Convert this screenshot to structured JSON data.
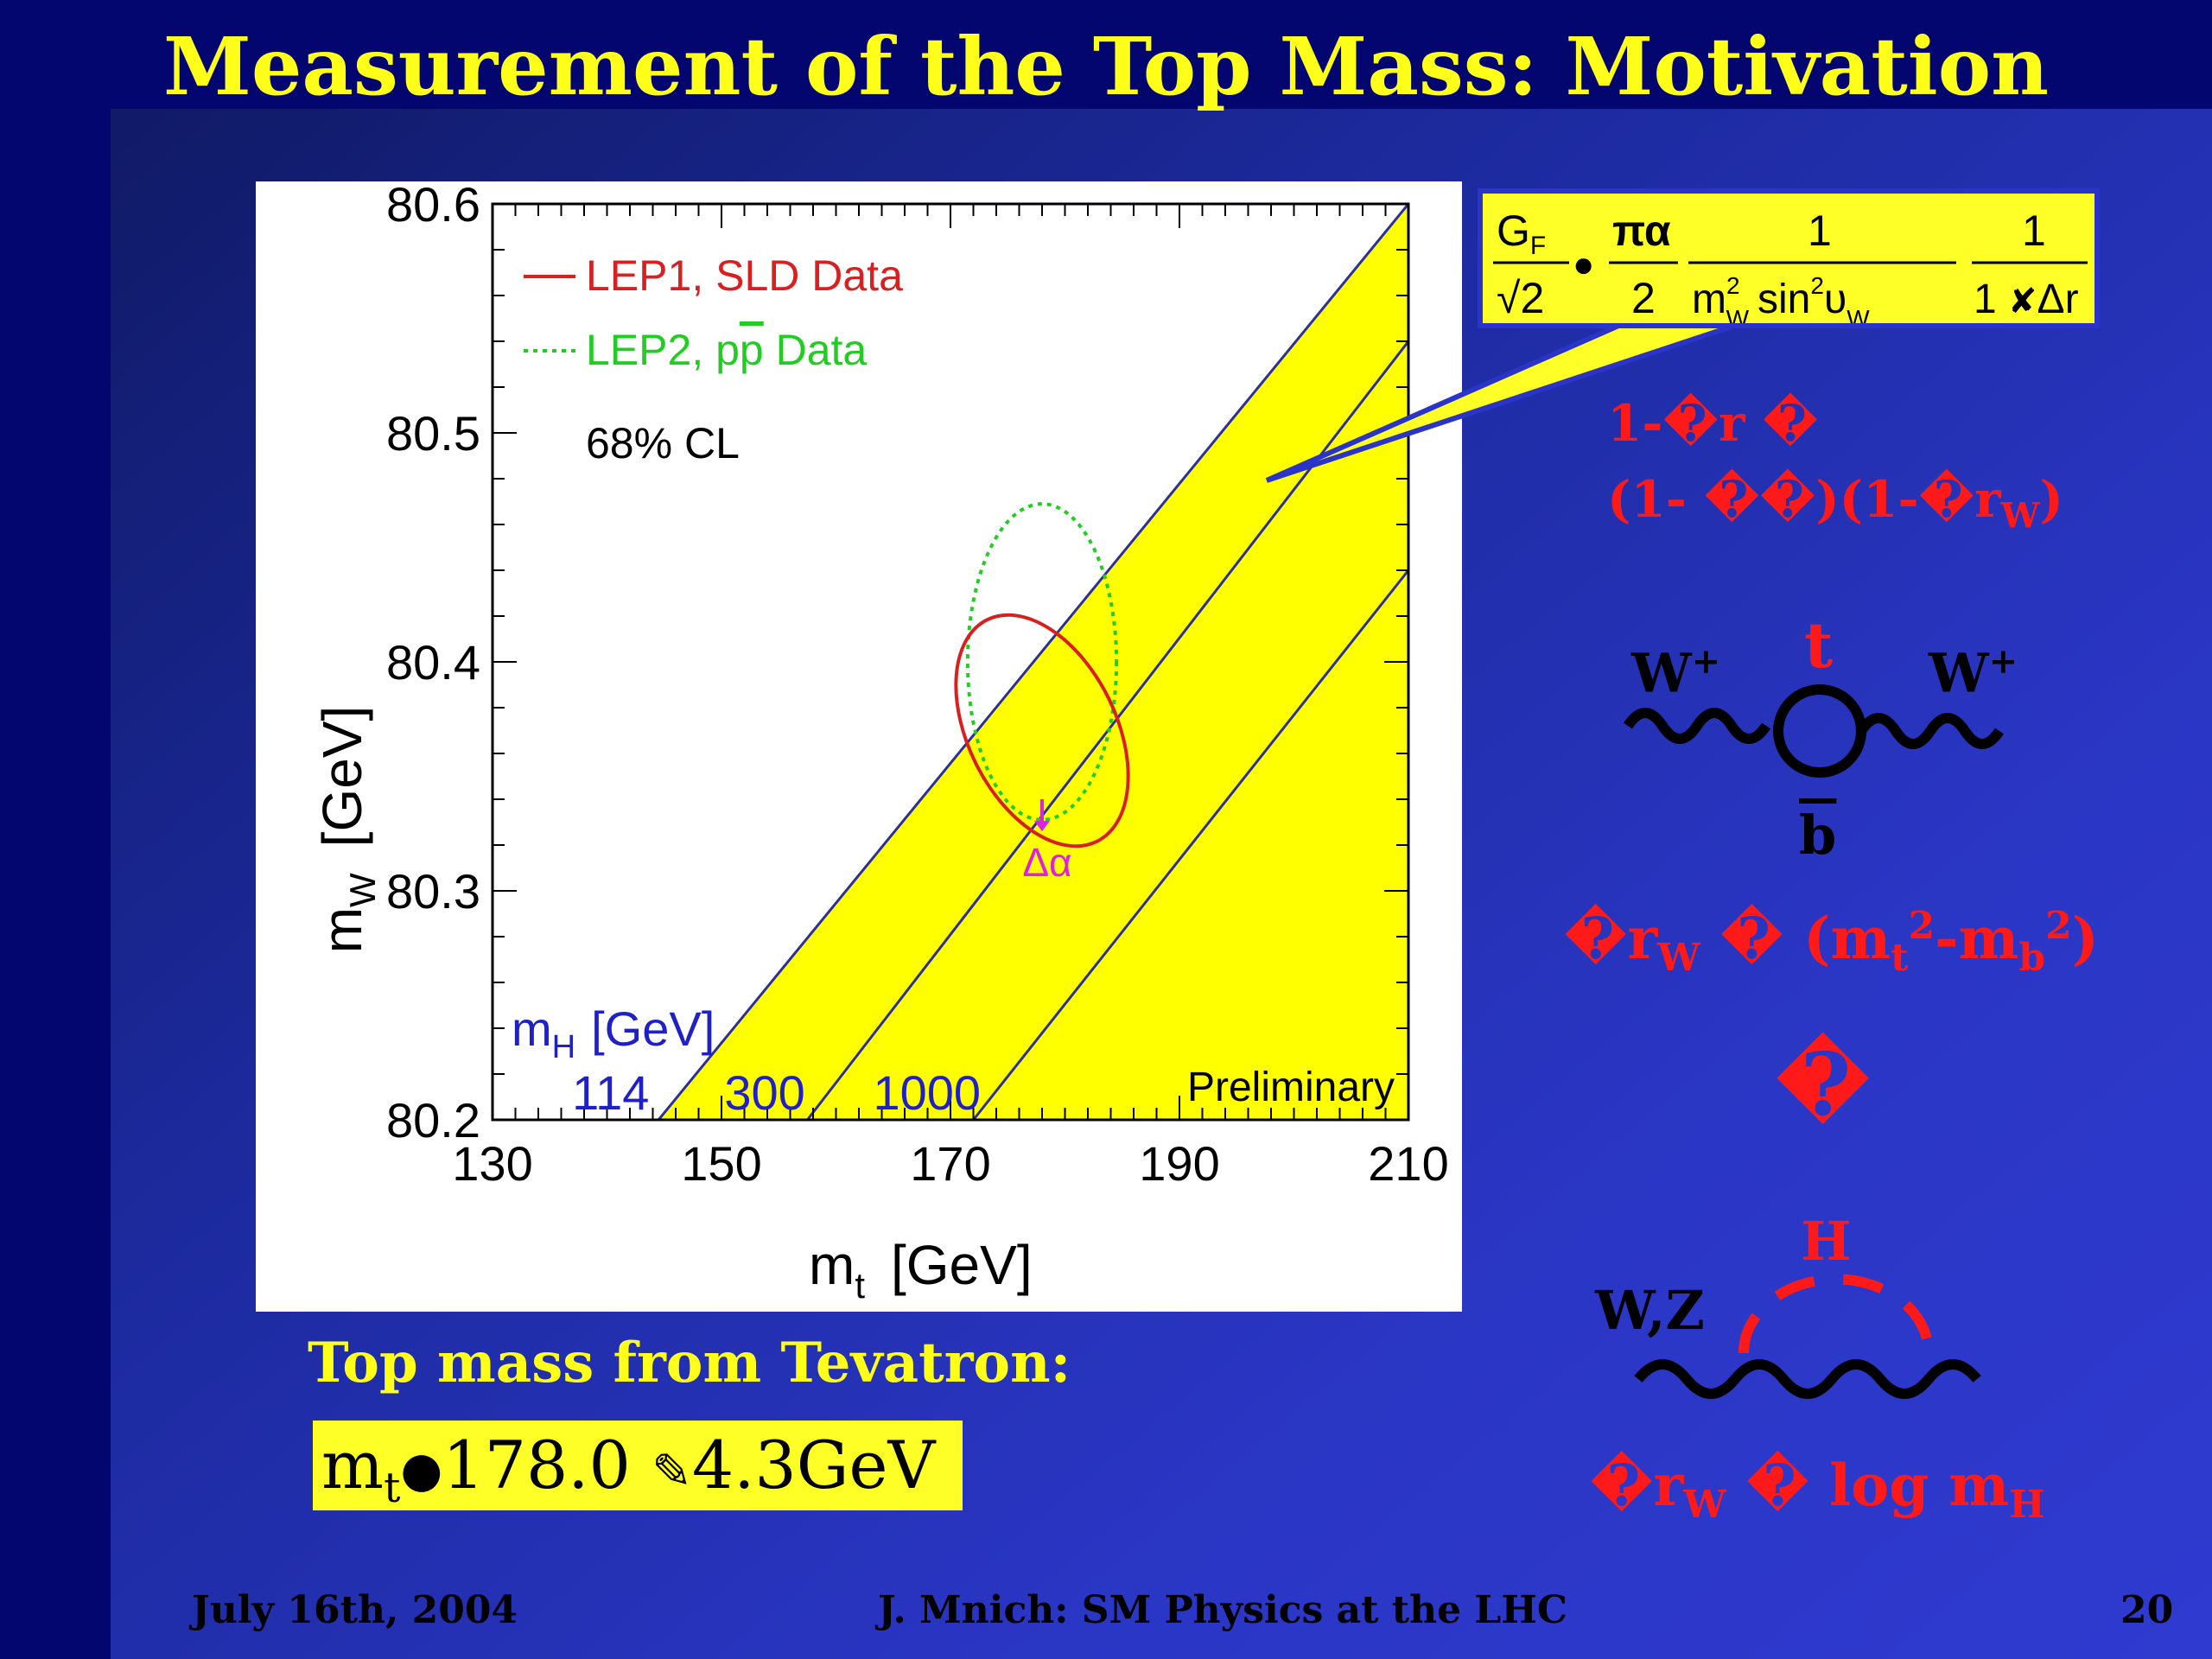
{
  "slide": {
    "title": "Measurement of the Top Mass: Motivation",
    "footer_left": "July 16th, 2004",
    "footer_center": "J. Mnich: SM Physics at the LHC",
    "footer_right": "20"
  },
  "formula": {
    "gf": "G",
    "gf_sub": "F",
    "sqrt2": "√2",
    "dot": "●",
    "pi_alpha": "πα",
    "two": "2",
    "one1": "1",
    "mw_den": "m",
    "mw_sup": "2",
    "mw_sub": "W",
    "sin_text": "sin",
    "sin_sup": "2",
    "theta_w": "υ",
    "theta_sub": "W",
    "one2": "1",
    "den2": "1 ",
    "den2_glyph": "✘",
    "den2_end": "Δr"
  },
  "right_text": {
    "line1": "1-�r �",
    "line2_a": "(1- ��)(1-�r",
    "line2_sub": "W",
    "line2_end": ")",
    "rw_mt_a": "�r",
    "rw_mt_sub1": "W",
    "rw_mt_b": " � (m",
    "rw_mt_sub2": "t",
    "rw_mt_sup2": "2",
    "rw_mt_c": "-m",
    "rw_mt_sub3": "b",
    "rw_mt_sup3": "2",
    "rw_mt_d": ")",
    "middle_glyph": "�",
    "rw_mh_a": "�r",
    "rw_mh_sub": "W",
    "rw_mh_b": " � log m",
    "rw_mh_sub2": "H"
  },
  "diagrams": {
    "w_left": "W",
    "w_left_sup": "+",
    "t": "t",
    "w_right": "W",
    "w_right_sup": "+",
    "bbar": "b",
    "wz": "W,Z",
    "h": "H"
  },
  "tevatron": {
    "caption": "Top mass from Tevatron:",
    "mt": "m",
    "mt_sub": "t",
    "dot": "●",
    "value": "178.0 ",
    "pm_glyph": "✎",
    "err": "4.3GeV"
  },
  "colors": {
    "lep1": "#d82020",
    "lep2": "#22cc22",
    "band": "#ffff00",
    "band_edge": "#2b2f9a",
    "mh_text": "#2020c8",
    "delta_alpha": "#e020e0"
  },
  "chart_data": {
    "type": "line",
    "xlabel": "m",
    "xlabel_sub": "t",
    "xlabel_unit": "[GeV]",
    "ylabel": "m",
    "ylabel_sub": "W",
    "ylabel_unit": "[GeV]",
    "xlim": [
      130,
      210
    ],
    "ylim": [
      80.2,
      80.6
    ],
    "x_ticks": [
      130,
      150,
      170,
      190,
      210
    ],
    "y_ticks": [
      80.2,
      80.3,
      80.4,
      80.5,
      80.6
    ],
    "x_tick_labels": [
      "130",
      "150",
      "170",
      "190",
      "210"
    ],
    "y_tick_labels": [
      "80.2",
      "80.3",
      "80.4",
      "80.5",
      "80.6"
    ],
    "legend": [
      {
        "label": "LEP1, SLD Data",
        "style": "solid",
        "color": "#d82020"
      },
      {
        "label": "LEP2, p",
        "label_bar": "p",
        "label_end": " Data",
        "style": "dotted",
        "color": "#22cc22"
      }
    ],
    "cl_label": "68% CL",
    "preliminary": "Preliminary",
    "mh_label": "m",
    "mh_label_sub": "H",
    "mh_label_unit": "[GeV]",
    "mh_lines": [
      {
        "label": "114",
        "x0": 144.5,
        "x1": 210,
        "y0": 80.2,
        "y1": 80.6
      },
      {
        "label": "300",
        "x0": 157.5,
        "x1": 210,
        "y0": 80.2,
        "y1": 80.54
      },
      {
        "label": "1000",
        "x0": 172,
        "x1": 210,
        "y0": 80.2,
        "y1": 80.44
      }
    ],
    "lep1_ellipse": {
      "cx": 178,
      "cy": 80.37,
      "rx": 34,
      "ry": 0.018,
      "angle_deg": 22
    },
    "lep2_ellipse": {
      "cx": 178,
      "cy": 80.4,
      "rx": 6.5,
      "ry": 0.069
    },
    "delta_alpha": {
      "label": "Δα",
      "x": 178,
      "y_from": 80.34,
      "y_to": 80.326
    }
  }
}
